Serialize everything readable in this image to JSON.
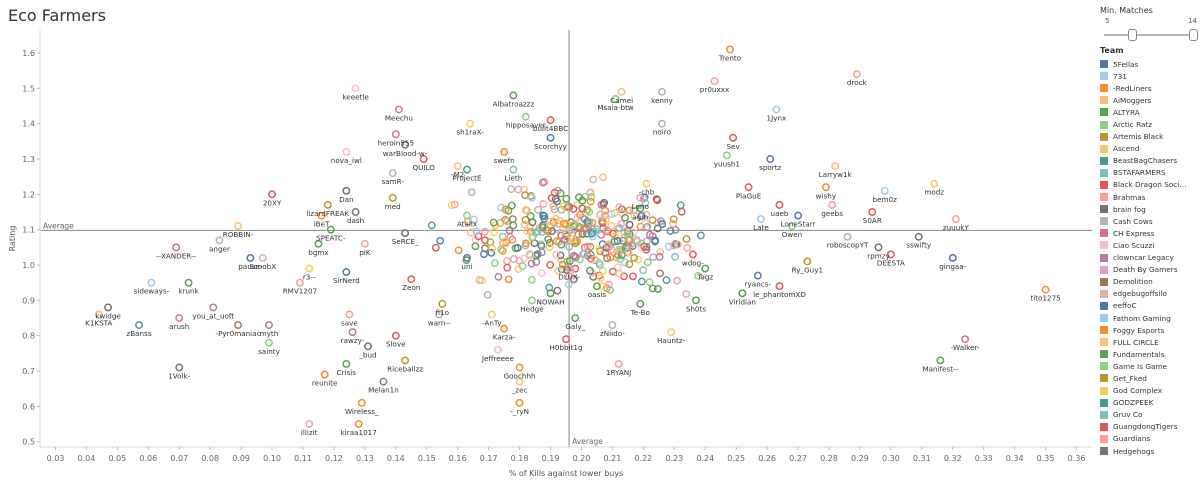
{
  "title": "Eco Farmers",
  "filter": {
    "title": "Min. Matches",
    "min": 5,
    "max": 14
  },
  "legend": {
    "title": "Team",
    "items": [
      {
        "label": "5Fellas",
        "color": "#4e79a7"
      },
      {
        "label": "731",
        "color": "#a0cbe8"
      },
      {
        "label": "-RedLiners",
        "color": "#f28e2b"
      },
      {
        "label": "AiMoggers",
        "color": "#ffbe7d"
      },
      {
        "label": "ALTYRA",
        "color": "#59a14f"
      },
      {
        "label": "Arctic Ratz",
        "color": "#8cd17d"
      },
      {
        "label": "Artemis Black",
        "color": "#b6992d"
      },
      {
        "label": "Ascend",
        "color": "#f1ce63"
      },
      {
        "label": "BeastBagChasers",
        "color": "#499894"
      },
      {
        "label": "BSTAFARMERS",
        "color": "#86bcb6"
      },
      {
        "label": "Black Dragon Soci…",
        "color": "#e15759"
      },
      {
        "label": "Brahmas",
        "color": "#ff9d9a"
      },
      {
        "label": "brain fog",
        "color": "#79706e"
      },
      {
        "label": "Cash Cows",
        "color": "#bab0ac"
      },
      {
        "label": "CH Express",
        "color": "#d37295"
      },
      {
        "label": "Ciao Scuzzi",
        "color": "#fabfd2"
      },
      {
        "label": "clowncar Legacy",
        "color": "#b07aa1"
      },
      {
        "label": "Death By Gamers",
        "color": "#d4a6c8"
      },
      {
        "label": "Demolition",
        "color": "#9d7660"
      },
      {
        "label": "edgebugoffsilo",
        "color": "#d7b5a6"
      },
      {
        "label": "eeffoC",
        "color": "#4e79a7"
      },
      {
        "label": "Fathom Gaming",
        "color": "#a0cbe8"
      },
      {
        "label": "Foggy Esports",
        "color": "#f28e2b"
      },
      {
        "label": "FULL CIRCLE",
        "color": "#ffbe7d"
      },
      {
        "label": "Fundamentals",
        "color": "#59a14f"
      },
      {
        "label": "Game Is Game",
        "color": "#8cd17d"
      },
      {
        "label": "Get_Fked",
        "color": "#b6992d"
      },
      {
        "label": "God Complex",
        "color": "#f1ce63"
      },
      {
        "label": "GODZPEEK",
        "color": "#499894"
      },
      {
        "label": "Gruv Co",
        "color": "#86bcb6"
      },
      {
        "label": "GuangdongTigers",
        "color": "#e15759"
      },
      {
        "label": "Guardians",
        "color": "#ff9d9a"
      },
      {
        "label": "Hedgehogs",
        "color": "#79706e"
      }
    ]
  },
  "chart_data": {
    "type": "scatter",
    "xlabel": "% of Kills against lower buys",
    "ylabel": "Rating",
    "xlim": [
      0.025,
      0.365
    ],
    "ylim": [
      0.485,
      1.665
    ],
    "xticks": [
      "0.03",
      "0.04",
      "0.05",
      "0.06",
      "0.07",
      "0.08",
      "0.09",
      "0.10",
      "0.11",
      "0.12",
      "0.13",
      "0.14",
      "0.15",
      "0.16",
      "0.17",
      "0.18",
      "0.19",
      "0.20",
      "0.21",
      "0.22",
      "0.23",
      "0.24",
      "0.25",
      "0.26",
      "0.27",
      "0.28",
      "0.29",
      "0.30",
      "0.31",
      "0.32",
      "0.33",
      "0.34",
      "0.35",
      "0.36"
    ],
    "yticks": [
      "0.5",
      "0.6",
      "0.7",
      "0.8",
      "0.9",
      "1.0",
      "1.1",
      "1.2",
      "1.3",
      "1.4",
      "1.5",
      "1.6"
    ],
    "reference_lines": {
      "x": 0.196,
      "y": 1.098,
      "label": "Average"
    },
    "labeled_points": [
      {
        "name": "Trento",
        "x": 0.248,
        "y": 1.61,
        "color": "#f28e2b"
      },
      {
        "name": "drock",
        "x": 0.289,
        "y": 1.54,
        "color": "#ff9d9a"
      },
      {
        "name": "pr0uxxx",
        "x": 0.243,
        "y": 1.52,
        "color": "#ff9d9a"
      },
      {
        "name": "keeetle",
        "x": 0.127,
        "y": 1.5,
        "color": "#fabfd2"
      },
      {
        "name": "Camei",
        "x": 0.213,
        "y": 1.49,
        "color": "#ffbe7d"
      },
      {
        "name": "Albatroazzz",
        "x": 0.178,
        "y": 1.48,
        "color": "#59a14f"
      },
      {
        "name": "Msaia-btw",
        "x": 0.211,
        "y": 1.47,
        "color": "#8cd17d"
      },
      {
        "name": "kenny",
        "x": 0.226,
        "y": 1.49,
        "color": "#bab0ac"
      },
      {
        "name": "1Jynx",
        "x": 0.263,
        "y": 1.44,
        "color": "#a0cbe8"
      },
      {
        "name": "built4BBC",
        "x": 0.19,
        "y": 1.41,
        "color": "#e15759"
      },
      {
        "name": "Meechu",
        "x": 0.141,
        "y": 1.44,
        "color": "#d37295"
      },
      {
        "name": "sh1raX-",
        "x": 0.164,
        "y": 1.4,
        "color": "#f1ce63"
      },
      {
        "name": "hipposaver",
        "x": 0.182,
        "y": 1.42,
        "color": "#8cd17d"
      },
      {
        "name": "noiro",
        "x": 0.226,
        "y": 1.4,
        "color": "#bab0ac"
      },
      {
        "name": "heroin555",
        "x": 0.14,
        "y": 1.37,
        "color": "#d37295"
      },
      {
        "name": "Scorchyy",
        "x": 0.19,
        "y": 1.36,
        "color": "#4e79a7"
      },
      {
        "name": "Sev",
        "x": 0.249,
        "y": 1.36,
        "color": "#e15759"
      },
      {
        "name": "warBlood-w-",
        "x": 0.143,
        "y": 1.34,
        "color": "#79706e"
      },
      {
        "name": "nova_iwl",
        "x": 0.124,
        "y": 1.32,
        "color": "#fabfd2"
      },
      {
        "name": "QUILO",
        "x": 0.149,
        "y": 1.3,
        "color": "#e15759"
      },
      {
        "name": "swefn",
        "x": 0.175,
        "y": 1.32,
        "color": "#f28e2b"
      },
      {
        "name": "yuush1",
        "x": 0.247,
        "y": 1.31,
        "color": "#8cd17d"
      },
      {
        "name": "sportz",
        "x": 0.261,
        "y": 1.3,
        "color": "#4e79a7"
      },
      {
        "name": "-M2",
        "x": 0.16,
        "y": 1.28,
        "color": "#ffbe7d"
      },
      {
        "name": "ProjectE",
        "x": 0.163,
        "y": 1.27,
        "color": "#499894"
      },
      {
        "name": "Lieth",
        "x": 0.178,
        "y": 1.27,
        "color": "#86bcb6"
      },
      {
        "name": "samR-",
        "x": 0.139,
        "y": 1.26,
        "color": "#bab0ac"
      },
      {
        "name": "Larryw1k",
        "x": 0.282,
        "y": 1.28,
        "color": "#ffbe7d"
      },
      {
        "name": "-chb",
        "x": 0.221,
        "y": 1.23,
        "color": "#f1ce63"
      },
      {
        "name": "PlaGuE",
        "x": 0.254,
        "y": 1.22,
        "color": "#e15759"
      },
      {
        "name": "wishy",
        "x": 0.279,
        "y": 1.22,
        "color": "#f28e2b"
      },
      {
        "name": "Dan",
        "x": 0.124,
        "y": 1.21,
        "color": "#79706e"
      },
      {
        "name": "med",
        "x": 0.139,
        "y": 1.19,
        "color": "#b6992d"
      },
      {
        "name": "Lono",
        "x": 0.219,
        "y": 1.19,
        "color": "#d4a6c8"
      },
      {
        "name": "bem0z",
        "x": 0.298,
        "y": 1.21,
        "color": "#a0cbe8"
      },
      {
        "name": "lizardFREAK",
        "x": 0.118,
        "y": 1.17,
        "color": "#b6992d"
      },
      {
        "name": "20XY",
        "x": 0.1,
        "y": 1.2,
        "color": "#e15759"
      },
      {
        "name": "uaeb",
        "x": 0.264,
        "y": 1.17,
        "color": "#e15759"
      },
      {
        "name": "geebs",
        "x": 0.281,
        "y": 1.17,
        "color": "#ff9d9a"
      },
      {
        "name": "modz",
        "x": 0.314,
        "y": 1.23,
        "color": "#f1ce63"
      },
      {
        "name": "dash",
        "x": 0.127,
        "y": 1.15,
        "color": "#79706e"
      },
      {
        "name": "agm",
        "x": 0.219,
        "y": 1.16,
        "color": "#59a14f"
      },
      {
        "name": "iBeT",
        "x": 0.116,
        "y": 1.14,
        "color": "#f28e2b"
      },
      {
        "name": "LoneStarr",
        "x": 0.27,
        "y": 1.14,
        "color": "#4e79a7"
      },
      {
        "name": "S0AR",
        "x": 0.294,
        "y": 1.15,
        "color": "#e15759"
      },
      {
        "name": "zuuukY",
        "x": 0.321,
        "y": 1.13,
        "color": "#ff9d9a"
      },
      {
        "name": "Atalix",
        "x": 0.163,
        "y": 1.14,
        "color": "#8cd17d"
      },
      {
        "name": "ROBBIN-",
        "x": 0.089,
        "y": 1.11,
        "color": "#ffbe7d"
      },
      {
        "name": "SPEATC-",
        "x": 0.119,
        "y": 1.1,
        "color": "#59a14f"
      },
      {
        "name": "Late",
        "x": 0.258,
        "y": 1.13,
        "color": "#a0cbe8"
      },
      {
        "name": "Owen",
        "x": 0.268,
        "y": 1.11,
        "color": "#8cd17d"
      },
      {
        "name": "anger",
        "x": 0.083,
        "y": 1.07,
        "color": "#bab0ac"
      },
      {
        "name": "SeRCE_",
        "x": 0.143,
        "y": 1.09,
        "color": "#79706e"
      },
      {
        "name": "roboscopYT",
        "x": 0.286,
        "y": 1.08,
        "color": "#bab0ac"
      },
      {
        "name": "--XANDER--",
        "x": 0.069,
        "y": 1.05,
        "color": "#b07aa1"
      },
      {
        "name": "bgmx",
        "x": 0.115,
        "y": 1.06,
        "color": "#59a14f"
      },
      {
        "name": "piK",
        "x": 0.13,
        "y": 1.06,
        "color": "#ff9d9a"
      },
      {
        "name": "ScoobX",
        "x": 0.097,
        "y": 1.02,
        "color": "#d7b5a6"
      },
      {
        "name": "sswifty",
        "x": 0.309,
        "y": 1.08,
        "color": "#79706e"
      },
      {
        "name": "uni",
        "x": 0.163,
        "y": 1.02,
        "color": "#4e79a7"
      },
      {
        "name": "wdog-",
        "x": 0.236,
        "y": 1.03,
        "color": "#e15759"
      },
      {
        "name": "rpmzy",
        "x": 0.296,
        "y": 1.05,
        "color": "#79706e"
      },
      {
        "name": "pause-",
        "x": 0.093,
        "y": 1.02,
        "color": "#4e79a7"
      },
      {
        "name": "Ry_Guy1",
        "x": 0.273,
        "y": 1.01,
        "color": "#b6992d"
      },
      {
        "name": "DEESTA",
        "x": 0.3,
        "y": 1.03,
        "color": "#e15759"
      },
      {
        "name": "gingaa-",
        "x": 0.32,
        "y": 1.02,
        "color": "#4e79a7"
      },
      {
        "name": "DLUX-",
        "x": 0.196,
        "y": 0.99,
        "color": "#d4a6c8"
      },
      {
        "name": "r3--",
        "x": 0.112,
        "y": 0.99,
        "color": "#f1ce63"
      },
      {
        "name": "SirNerd",
        "x": 0.124,
        "y": 0.98,
        "color": "#4e79a7"
      },
      {
        "name": "Zeon",
        "x": 0.145,
        "y": 0.96,
        "color": "#e15759"
      },
      {
        "name": "Tagz",
        "x": 0.24,
        "y": 0.99,
        "color": "#59a14f"
      },
      {
        "name": "ryancs-",
        "x": 0.257,
        "y": 0.97,
        "color": "#4e79a7"
      },
      {
        "name": "le_phantomXD",
        "x": 0.264,
        "y": 0.94,
        "color": "#e15759"
      },
      {
        "name": "sideways-",
        "x": 0.061,
        "y": 0.95,
        "color": "#a0cbe8"
      },
      {
        "name": "krunk",
        "x": 0.073,
        "y": 0.95,
        "color": "#59a14f"
      },
      {
        "name": "RMV1207",
        "x": 0.109,
        "y": 0.95,
        "color": "#ff9d9a"
      },
      {
        "name": "oasis",
        "x": 0.205,
        "y": 0.94,
        "color": "#59a14f"
      },
      {
        "name": "NOWAH",
        "x": 0.19,
        "y": 0.92,
        "color": "#59a14f"
      },
      {
        "name": "Viridian",
        "x": 0.252,
        "y": 0.92,
        "color": "#59a14f"
      },
      {
        "name": "tito1275",
        "x": 0.35,
        "y": 0.93,
        "color": "#f28e2b"
      },
      {
        "name": "kwidge",
        "x": 0.047,
        "y": 0.88,
        "color": "#79706e"
      },
      {
        "name": "you_at_uoft",
        "x": 0.081,
        "y": 0.88,
        "color": "#b07aa1"
      },
      {
        "name": "fi1o",
        "x": 0.155,
        "y": 0.89,
        "color": "#b6992d"
      },
      {
        "name": "Hedge",
        "x": 0.184,
        "y": 0.9,
        "color": "#8cd17d"
      },
      {
        "name": "Te-Bo",
        "x": 0.219,
        "y": 0.89,
        "color": "#59a14f"
      },
      {
        "name": "Sh0ts",
        "x": 0.237,
        "y": 0.9,
        "color": "#59a14f"
      },
      {
        "name": "K1KSTA",
        "x": 0.044,
        "y": 0.86,
        "color": "#ffbe7d"
      },
      {
        "name": "save",
        "x": 0.125,
        "y": 0.86,
        "color": "#ff9d9a"
      },
      {
        "name": "-AnTy",
        "x": 0.171,
        "y": 0.86,
        "color": "#f1ce63"
      },
      {
        "name": "warn--",
        "x": 0.154,
        "y": 0.86,
        "color": "#bab0ac"
      },
      {
        "name": "Galy_",
        "x": 0.198,
        "y": 0.85,
        "color": "#59a14f"
      },
      {
        "name": "zBanss",
        "x": 0.057,
        "y": 0.83,
        "color": "#499894"
      },
      {
        "name": "arush",
        "x": 0.07,
        "y": 0.85,
        "color": "#d37295"
      },
      {
        "name": "-Pyr0maniac",
        "x": 0.089,
        "y": 0.83,
        "color": "#9d7660"
      },
      {
        "name": "myth",
        "x": 0.099,
        "y": 0.83,
        "color": "#b07aa1"
      },
      {
        "name": "Karza-",
        "x": 0.175,
        "y": 0.82,
        "color": "#f28e2b"
      },
      {
        "name": "zNiido-",
        "x": 0.21,
        "y": 0.83,
        "color": "#bab0ac"
      },
      {
        "name": "Slove",
        "x": 0.14,
        "y": 0.8,
        "color": "#e15759"
      },
      {
        "name": "Hauntz-",
        "x": 0.229,
        "y": 0.81,
        "color": "#f1ce63"
      },
      {
        "name": "H0bbit1g",
        "x": 0.195,
        "y": 0.79,
        "color": "#e15759"
      },
      {
        "name": "rawzy-",
        "x": 0.126,
        "y": 0.81,
        "color": "#b07aa1"
      },
      {
        "name": "sainty",
        "x": 0.099,
        "y": 0.78,
        "color": "#8cd17d"
      },
      {
        "name": "_bud",
        "x": 0.131,
        "y": 0.77,
        "color": "#79706e"
      },
      {
        "name": "-Walker-",
        "x": 0.324,
        "y": 0.79,
        "color": "#d37295"
      },
      {
        "name": "Jeffreeee",
        "x": 0.173,
        "y": 0.76,
        "color": "#fabfd2"
      },
      {
        "name": "Riceballzz",
        "x": 0.143,
        "y": 0.73,
        "color": "#b6992d"
      },
      {
        "name": "Crisis",
        "x": 0.124,
        "y": 0.72,
        "color": "#59a14f"
      },
      {
        "name": "Goochhh",
        "x": 0.18,
        "y": 0.71,
        "color": "#f28e2b"
      },
      {
        "name": "1RYANJ",
        "x": 0.212,
        "y": 0.72,
        "color": "#ff9d9a"
      },
      {
        "name": "Manifest--",
        "x": 0.316,
        "y": 0.73,
        "color": "#59a14f"
      },
      {
        "name": "1Volk-",
        "x": 0.07,
        "y": 0.71,
        "color": "#79706e"
      },
      {
        "name": "reunite",
        "x": 0.117,
        "y": 0.69,
        "color": "#f28e2b"
      },
      {
        "name": "Melan1n",
        "x": 0.136,
        "y": 0.67,
        "color": "#9d7660"
      },
      {
        "name": "_zec",
        "x": 0.18,
        "y": 0.67,
        "color": "#f1ce63"
      },
      {
        "name": "Wireless_",
        "x": 0.129,
        "y": 0.61,
        "color": "#f28e2b"
      },
      {
        "name": "-_ryN",
        "x": 0.18,
        "y": 0.61,
        "color": "#f28e2b"
      },
      {
        "name": "kiraa1017",
        "x": 0.128,
        "y": 0.55,
        "color": "#f28e2b"
      },
      {
        "name": "illizit",
        "x": 0.112,
        "y": 0.55,
        "color": "#d4a6c8"
      }
    ]
  }
}
